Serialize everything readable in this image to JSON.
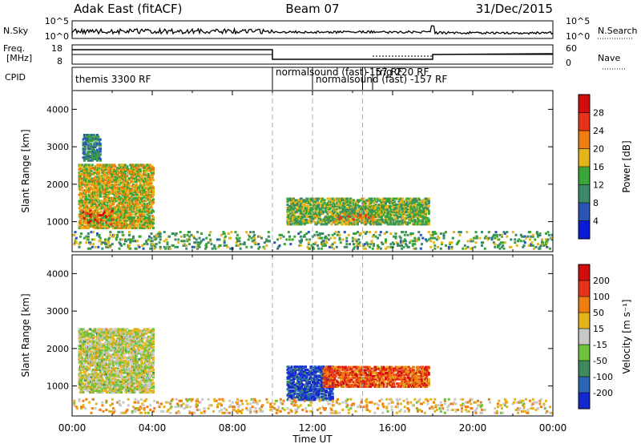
{
  "header": {
    "station": "Adak East (fitACF)",
    "beam": "Beam 07",
    "date": "31/Dec/2015"
  },
  "sky_panel": {
    "left_label": "N.Sky",
    "right_label": "N.Search",
    "left_ticks": [
      "10^5",
      "10^0"
    ],
    "right_ticks": [
      "10^5",
      "10^0"
    ]
  },
  "freq_panel": {
    "left_label_1": "Freq.",
    "left_label_2": "[MHz]",
    "right_label": "Nave",
    "left_ticks": [
      "18",
      "8"
    ],
    "right_ticks": [
      "60",
      "0"
    ]
  },
  "cpid_panel": {
    "label": "CPID",
    "programs": [
      {
        "start": 0.0,
        "text": "themis 3300 RF"
      },
      {
        "start": 10.0,
        "text": "normalsound (fast)"
      },
      {
        "start": 12.0,
        "text": "normalsound (fast) -157 RF"
      },
      {
        "start": 14.5,
        "text": "-157 RF"
      },
      {
        "start": 15.0,
        "text": "trig 220 RF"
      }
    ]
  },
  "x_axis": {
    "label": "Time UT",
    "ticks": [
      "00:00",
      "04:00",
      "08:00",
      "12:00",
      "16:00",
      "20:00",
      "00:00"
    ]
  },
  "chart_data": [
    {
      "type": "heatmap",
      "name": "power",
      "xlim": [
        0,
        24
      ],
      "ylim": [
        200,
        4500
      ],
      "yticks": [
        1000,
        2000,
        3000,
        4000
      ],
      "ylabel": "Slant Range [km]",
      "colorbar_label": "Power [dB]",
      "colorbar_ticks": [
        "4",
        "8",
        "12",
        "16",
        "20",
        "24",
        "28"
      ],
      "colors": [
        "#0a1bd8",
        "#2a55b4",
        "#3a8a6a",
        "#3aa63a",
        "#e4b51b",
        "#ee7d12",
        "#e53418",
        "#d20d0d"
      ],
      "regions": [
        {
          "t": [
            0.3,
            4.0
          ],
          "r": [
            800,
            2500
          ],
          "level": 0.55
        },
        {
          "t": [
            0.4,
            2.0
          ],
          "r": [
            900,
            1300
          ],
          "level": 0.85
        },
        {
          "t": [
            0.5,
            1.4
          ],
          "r": [
            2600,
            3300
          ],
          "level": 0.3
        },
        {
          "t": [
            10.7,
            17.8
          ],
          "r": [
            900,
            1600
          ],
          "level": 0.45
        },
        {
          "t": [
            13.0,
            15.0
          ],
          "r": [
            950,
            1200
          ],
          "level": 0.7
        },
        {
          "t": [
            0.0,
            24.0
          ],
          "r": [
            250,
            700
          ],
          "level": 0.4
        }
      ]
    },
    {
      "type": "heatmap",
      "name": "velocity",
      "xlim": [
        0,
        24
      ],
      "ylim": [
        200,
        4500
      ],
      "yticks": [
        1000,
        2000,
        3000,
        4000
      ],
      "ylabel": "Slant Range [km]",
      "colorbar_label": "Velocity [m s⁻¹]",
      "colorbar_ticks": [
        "200",
        "100",
        "50",
        "15",
        "-15",
        "-50",
        "-100",
        "-200"
      ],
      "colors": [
        "#1428d0",
        "#2a66b4",
        "#3e8a5e",
        "#6cc23c",
        "#c8c8c8",
        "#e4b51b",
        "#ee7d12",
        "#e53418",
        "#d20d0d"
      ],
      "regions": [
        {
          "t": [
            0.3,
            4.0
          ],
          "r": [
            800,
            2500
          ],
          "level": 0.5
        },
        {
          "t": [
            10.7,
            13.0
          ],
          "r": [
            600,
            1500
          ],
          "level": 0.1
        },
        {
          "t": [
            12.5,
            17.8
          ],
          "r": [
            950,
            1500
          ],
          "level": 0.8
        },
        {
          "t": [
            0.0,
            24.0
          ],
          "r": [
            250,
            650
          ],
          "level": 0.6
        }
      ]
    }
  ]
}
